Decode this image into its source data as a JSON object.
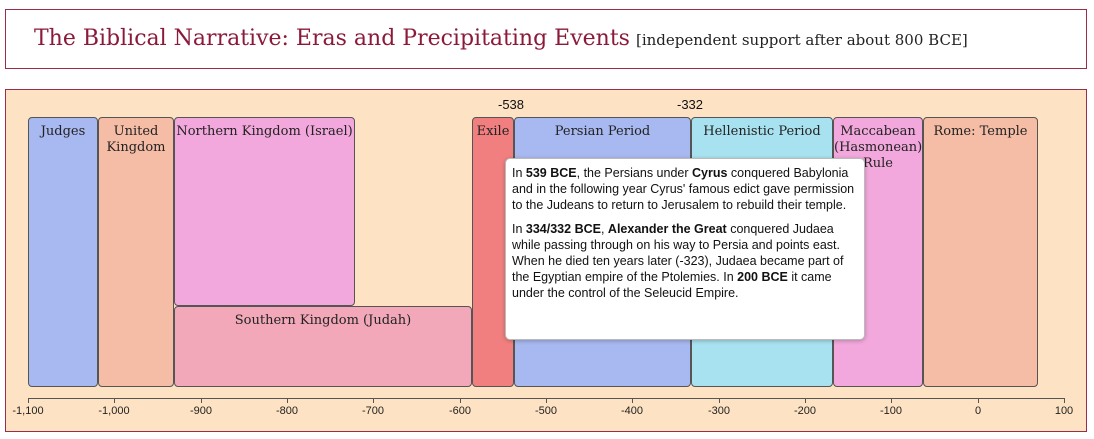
{
  "header": {
    "title": "The Biblical Narrative: Eras and Precipitating Events",
    "subtitle": "[independent support after about 800 BCE]"
  },
  "markers": [
    "-538",
    "-332"
  ],
  "eras": {
    "judges": "Judges",
    "united_1": "United",
    "united_2": "Kingdom",
    "northern": "Northern Kingdom (Israel)",
    "southern": "Southern Kingdom (Judah)",
    "exile": "Exile",
    "persian": "Persian Period",
    "hellenistic": "Hellenistic Period",
    "maccabean_1": "Maccabean",
    "maccabean_2": "(Hasmonean)",
    "maccabean_3": "Rule",
    "rome": "Rome: Temple"
  },
  "colors": {
    "judges": "#a8b8f0",
    "united": "#f5bca6",
    "northern": "#f2a8dc",
    "southern": "#f2a8b8",
    "exile": "#f27f7f",
    "persian": "#a8b8f0",
    "hellenistic": "#a8e2f0",
    "maccabean": "#f2a8dc",
    "rome": "#f5bca6"
  },
  "axis_ticks": [
    "-1,100",
    "-1,000",
    "-900",
    "-800",
    "-700",
    "-600",
    "-500",
    "-400",
    "-300",
    "-200",
    "-100",
    "0",
    "100"
  ],
  "tooltip": {
    "p1_year": "539 BCE",
    "p1_text1": ", the Persians under ",
    "p1_name": "Cyrus",
    "p1_text2": " conquered Babylonia and in the following year Cyrus' famous edict gave permission to the Judeans to return to Jerusalem to rebuild their temple.",
    "p2_text0": "In ",
    "p2_year": "334/332 BCE",
    "p2_sep": ", ",
    "p2_name": "Alexander the Great",
    "p2_text1": " conquered Judaea while passing through on his way to Persia and points east. When he died ten years later (-323), Judaea became part of the Egyptian empire of the Ptolemies. In ",
    "p2_year2": "200 BCE",
    "p2_text2": " it came under the control of the Seleucid Empire.",
    "p1_text0": "In "
  }
}
